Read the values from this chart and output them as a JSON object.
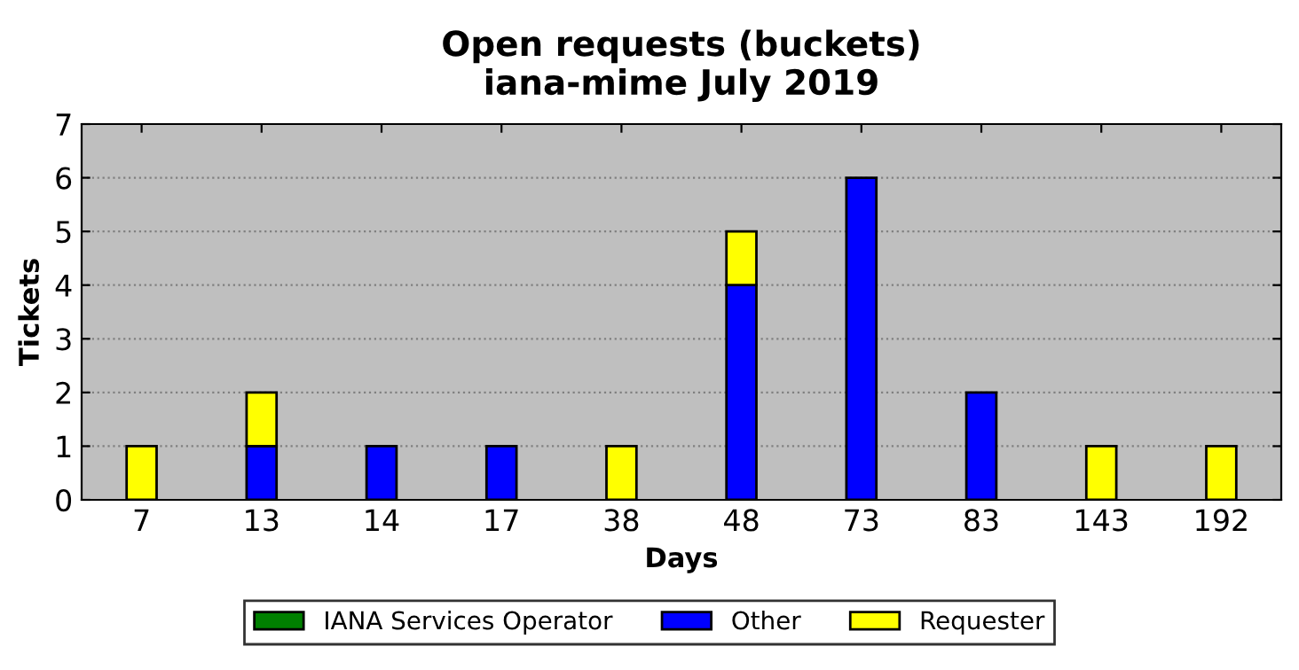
{
  "chart_data": {
    "type": "bar",
    "title": "Open requests (buckets)\niana-mime July 2019",
    "xlabel": "Days",
    "ylabel": "Tickets",
    "categories": [
      "7",
      "13",
      "14",
      "17",
      "38",
      "48",
      "73",
      "83",
      "143",
      "192"
    ],
    "stacked": true,
    "series": [
      {
        "name": "IANA Services Operator",
        "color": "#008000",
        "values": [
          0,
          0,
          0,
          0,
          0,
          0,
          0,
          0,
          0,
          0
        ]
      },
      {
        "name": "Other",
        "color": "#0000ff",
        "values": [
          0,
          1,
          1,
          1,
          0,
          4,
          6,
          2,
          0,
          0
        ]
      },
      {
        "name": "Requester",
        "color": "#ffff00",
        "values": [
          1,
          1,
          0,
          0,
          1,
          1,
          0,
          0,
          1,
          1
        ]
      }
    ],
    "ylim": [
      0,
      7
    ],
    "yticks": [
      0,
      1,
      2,
      3,
      4,
      5,
      6,
      7
    ],
    "grid": "y",
    "legend": "bottom"
  }
}
